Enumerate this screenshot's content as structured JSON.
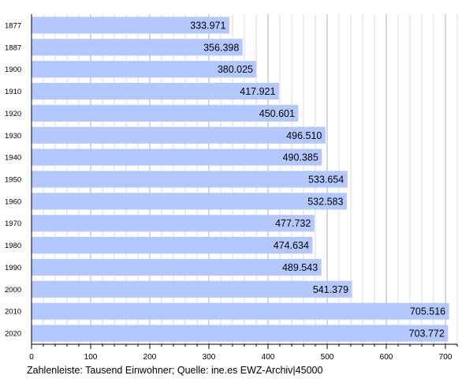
{
  "chart_data": {
    "type": "bar",
    "orientation": "horizontal",
    "categories": [
      "1877",
      "1887",
      "1900",
      "1910",
      "1920",
      "1930",
      "1940",
      "1950",
      "1960",
      "1970",
      "1980",
      "1990",
      "2000",
      "2010",
      "2020"
    ],
    "values": [
      333.971,
      356.398,
      380.025,
      417.921,
      450.601,
      496.51,
      490.385,
      533.654,
      532.583,
      477.732,
      474.634,
      489.543,
      541.379,
      705.516,
      703.772
    ],
    "value_labels": [
      "333.971",
      "356.398",
      "380.025",
      "417.921",
      "450.601",
      "496.510",
      "490.385",
      "533.654",
      "532.583",
      "477.732",
      "474.634",
      "489.543",
      "541.379",
      "705.516",
      "703.772"
    ],
    "xlim": [
      0,
      720
    ],
    "xticks": [
      0,
      100,
      200,
      300,
      400,
      500,
      600,
      700
    ],
    "grid": true,
    "legend": "none",
    "bar_color": "#b3c8ff",
    "grid_color": "#cccccc",
    "caption": "Zahlenleiste: Tausend Einwohner; Quelle: ine.es EWZ-Archiv|45000"
  }
}
